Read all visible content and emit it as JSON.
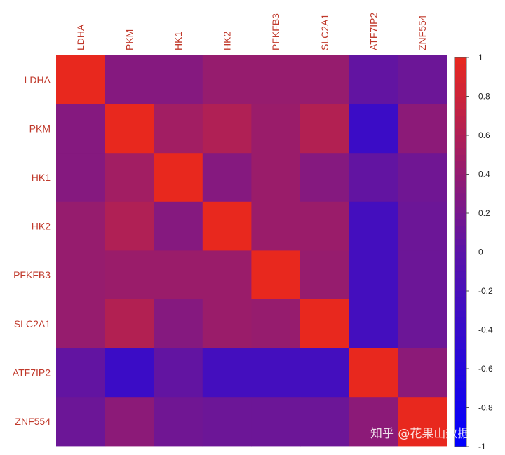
{
  "chart_data": {
    "type": "heatmap",
    "title": "",
    "xlabel": "",
    "ylabel": "",
    "categories": [
      "LDHA",
      "PKM",
      "HK1",
      "HK2",
      "PFKFB3",
      "SLC2A1",
      "ATF7IP2",
      "ZNF554"
    ],
    "values": [
      [
        1.0,
        0.3,
        0.3,
        0.42,
        0.42,
        0.42,
        0.05,
        0.12
      ],
      [
        0.3,
        1.0,
        0.5,
        0.6,
        0.45,
        0.62,
        -0.35,
        0.35
      ],
      [
        0.3,
        0.5,
        1.0,
        0.3,
        0.45,
        0.3,
        0.05,
        0.15
      ],
      [
        0.42,
        0.6,
        0.3,
        1.0,
        0.45,
        0.45,
        -0.25,
        0.12
      ],
      [
        0.42,
        0.45,
        0.45,
        0.45,
        1.0,
        0.42,
        -0.25,
        0.12
      ],
      [
        0.42,
        0.62,
        0.3,
        0.45,
        0.42,
        1.0,
        -0.25,
        0.12
      ],
      [
        0.05,
        -0.35,
        0.05,
        -0.25,
        -0.25,
        -0.25,
        1.0,
        0.35
      ],
      [
        0.12,
        0.35,
        0.15,
        0.12,
        0.12,
        0.12,
        0.35,
        1.0
      ]
    ],
    "color_range": [
      -1,
      1
    ],
    "colorbar_ticks": [
      "1",
      "0.8",
      "0.6",
      "0.4",
      "0.2",
      "0",
      "-0.2",
      "-0.4",
      "-0.6",
      "-0.8",
      "-1"
    ],
    "colors": {
      "low": "#0000ff",
      "mid": "#5b13a8",
      "high": "#e8281e",
      "label": "#c0392b"
    },
    "legend_position": "right"
  },
  "watermark": "知乎 @花果山数据"
}
